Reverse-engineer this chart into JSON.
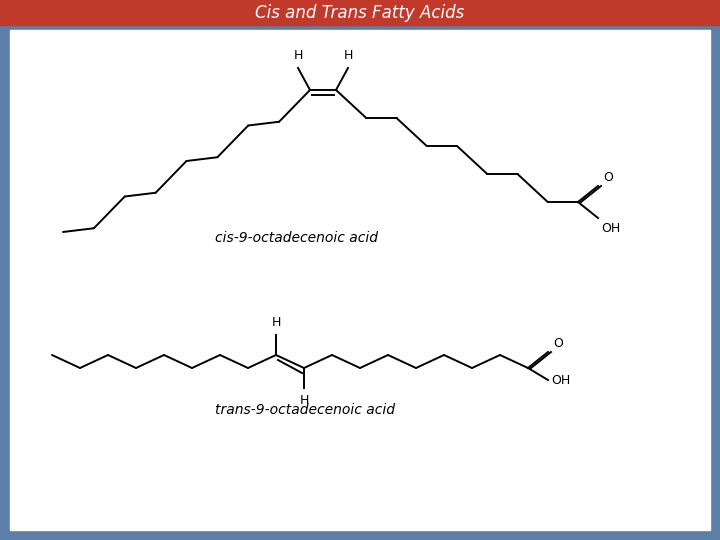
{
  "title": "Cis and Trans Fatty Acids",
  "title_color": "#ffffff",
  "title_bg_color": "#c0392b",
  "border_color": "#5b7fa6",
  "bg_color": "#ffffff",
  "outer_bg_color": "#5b7fa6",
  "cis_label": "cis-9-octadecenoic acid",
  "trans_label": "trans-9-octadecenoic acid",
  "title_fontsize": 12,
  "label_fontsize": 10
}
